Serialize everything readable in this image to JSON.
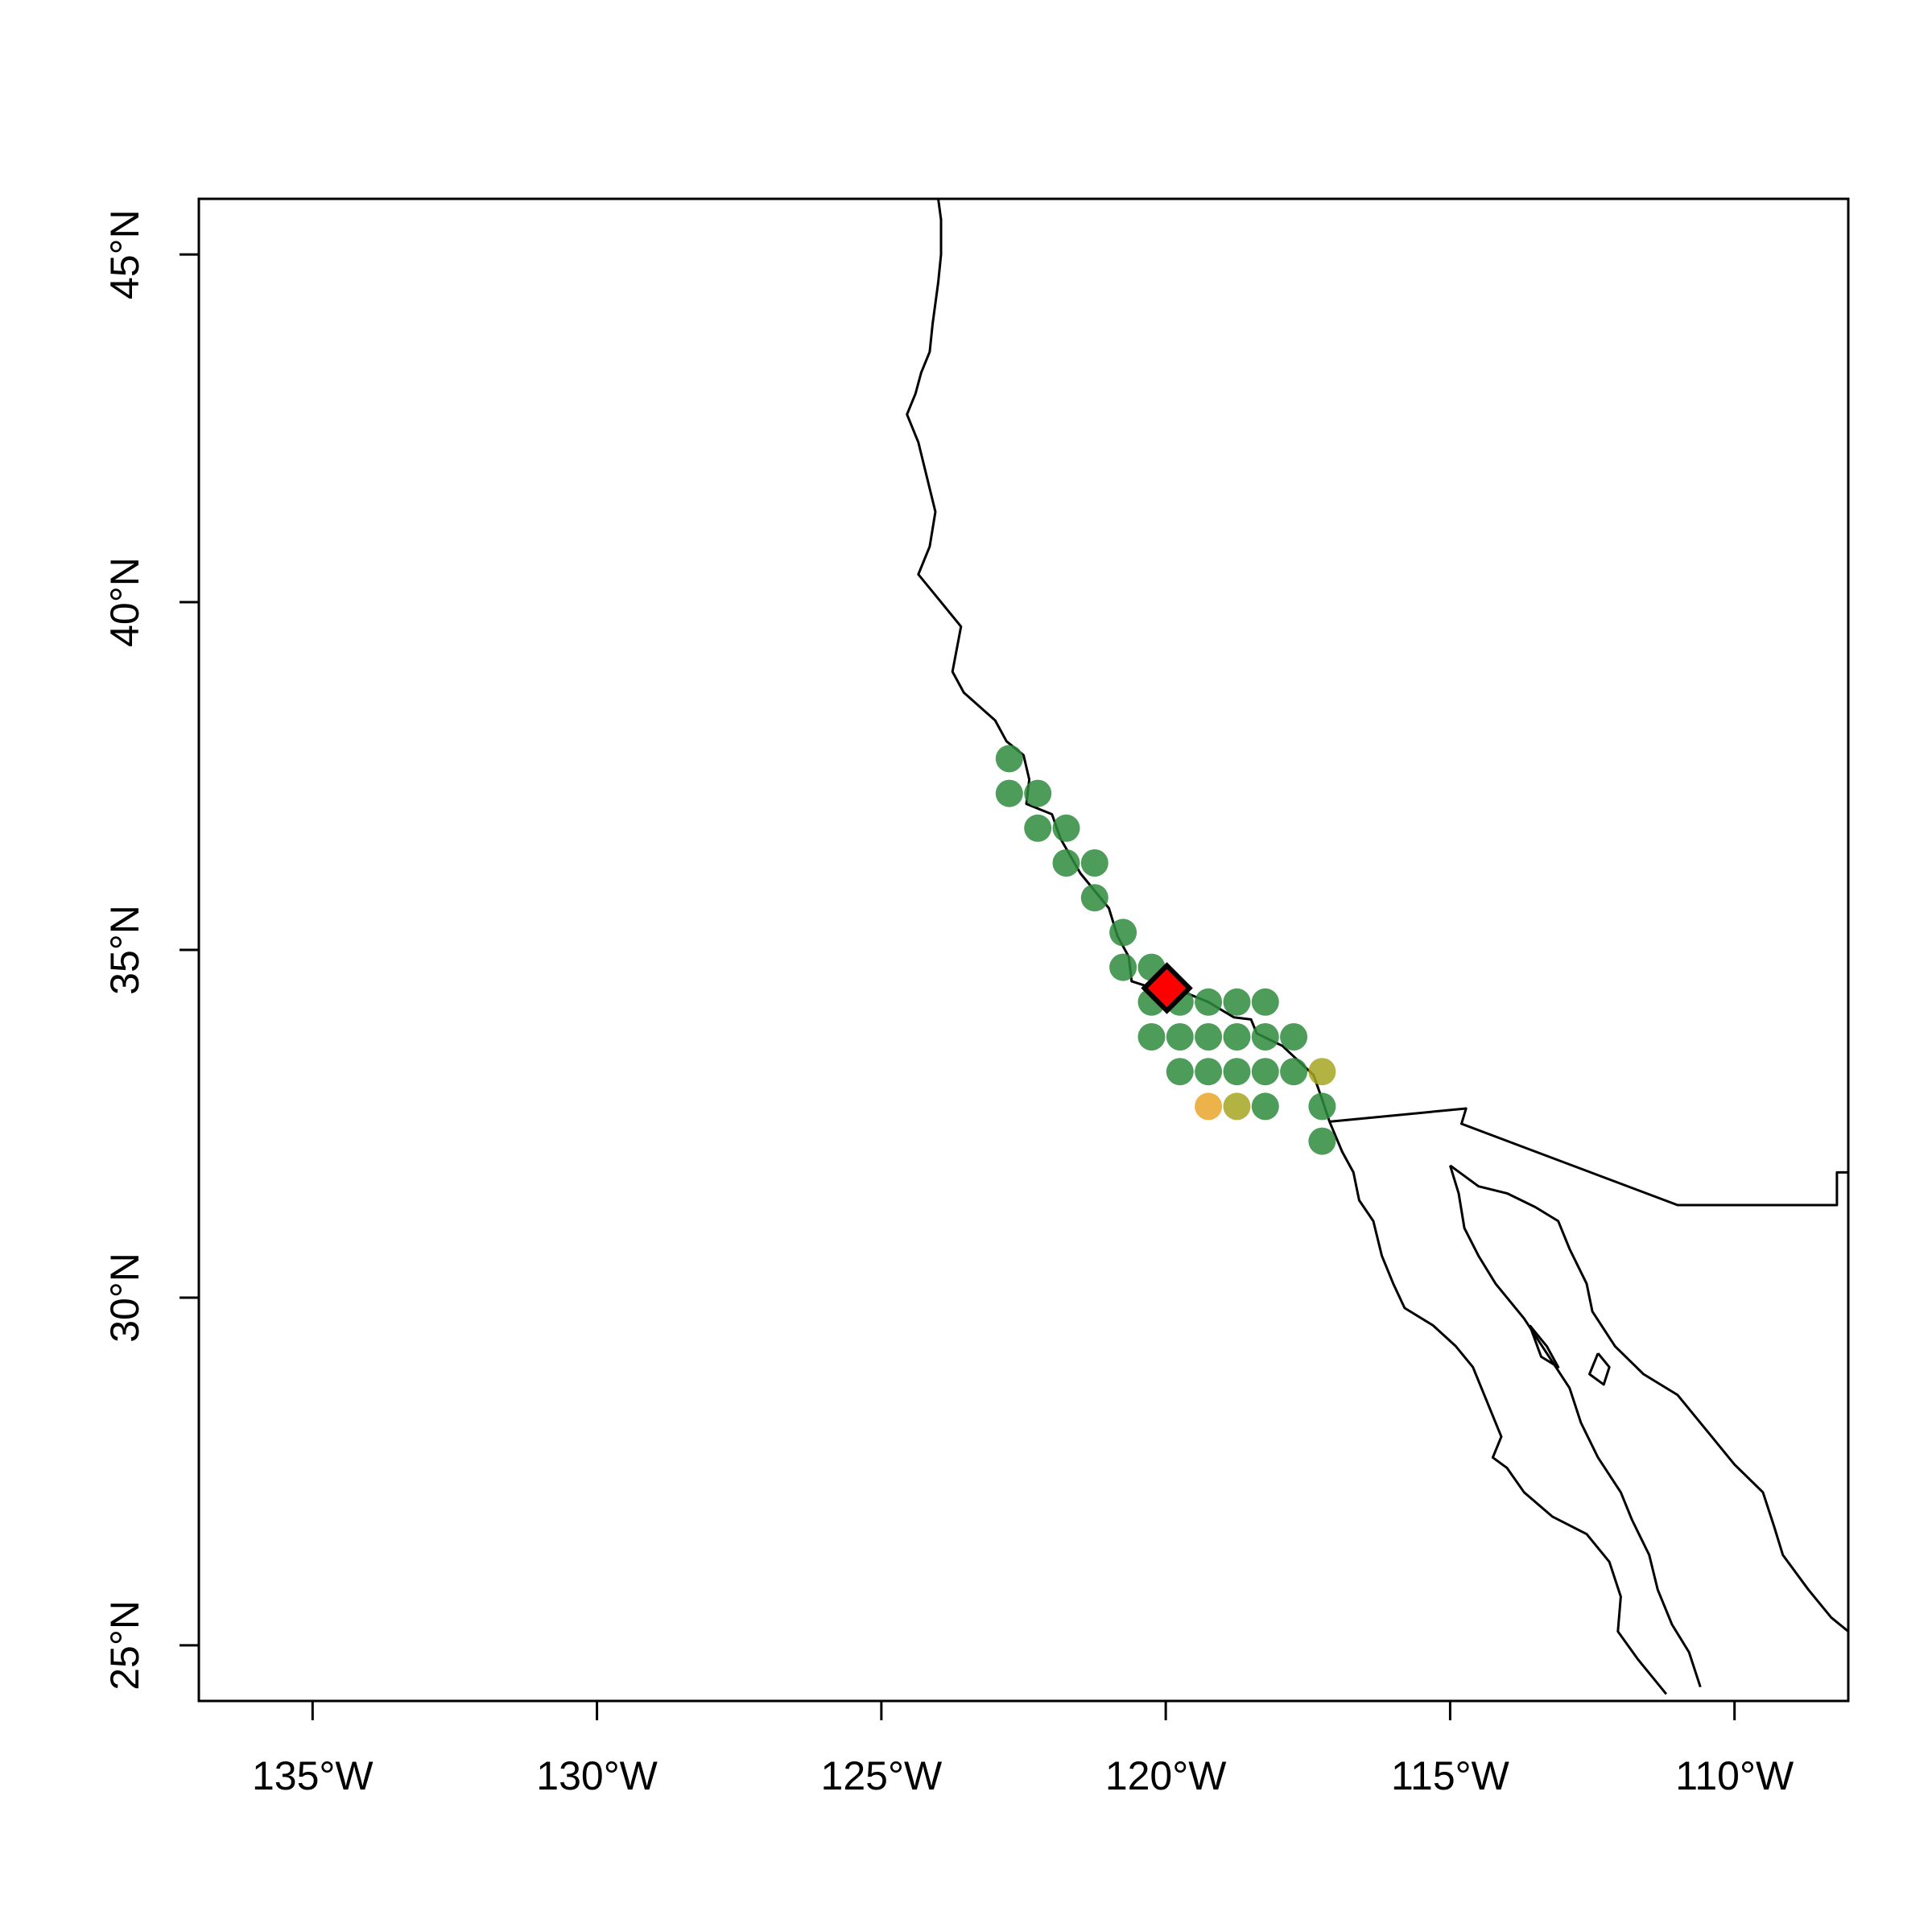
{
  "chart_data": {
    "type": "scatter",
    "title": "",
    "xlabel": "",
    "ylabel": "",
    "xlim": [
      -137,
      -108
    ],
    "ylim": [
      24.2,
      45.8
    ],
    "x_ticks": [
      {
        "value": -135,
        "label": "135°W"
      },
      {
        "value": -130,
        "label": "130°W"
      },
      {
        "value": -125,
        "label": "125°W"
      },
      {
        "value": -120,
        "label": "120°W"
      },
      {
        "value": -115,
        "label": "115°W"
      },
      {
        "value": -110,
        "label": "110°W"
      }
    ],
    "y_ticks": [
      {
        "value": 25,
        "label": "25°N"
      },
      {
        "value": 30,
        "label": "30°N"
      },
      {
        "value": 35,
        "label": "35°N"
      },
      {
        "value": 40,
        "label": "40°N"
      },
      {
        "value": 45,
        "label": "45°N"
      }
    ],
    "colors": {
      "green": "#2e8b3c",
      "olive": "#a6a623",
      "orange": "#e8a62a",
      "marker_fill": "#ff0000",
      "marker_stroke": "#000000"
    },
    "points": [
      {
        "lon": -122.75,
        "lat": 37.75,
        "color": "green"
      },
      {
        "lon": -122.75,
        "lat": 37.25,
        "color": "green"
      },
      {
        "lon": -122.25,
        "lat": 37.25,
        "color": "green"
      },
      {
        "lon": -122.25,
        "lat": 36.75,
        "color": "green"
      },
      {
        "lon": -121.75,
        "lat": 36.75,
        "color": "green"
      },
      {
        "lon": -121.75,
        "lat": 36.25,
        "color": "green"
      },
      {
        "lon": -121.25,
        "lat": 36.25,
        "color": "green"
      },
      {
        "lon": -121.25,
        "lat": 35.75,
        "color": "green"
      },
      {
        "lon": -120.75,
        "lat": 35.25,
        "color": "green"
      },
      {
        "lon": -120.75,
        "lat": 34.75,
        "color": "green"
      },
      {
        "lon": -120.25,
        "lat": 34.75,
        "color": "green"
      },
      {
        "lon": -120.25,
        "lat": 34.25,
        "color": "green"
      },
      {
        "lon": -119.75,
        "lat": 34.25,
        "color": "green"
      },
      {
        "lon": -119.25,
        "lat": 34.25,
        "color": "green"
      },
      {
        "lon": -118.75,
        "lat": 34.25,
        "color": "green"
      },
      {
        "lon": -118.25,
        "lat": 34.25,
        "color": "green"
      },
      {
        "lon": -120.25,
        "lat": 33.75,
        "color": "green"
      },
      {
        "lon": -119.75,
        "lat": 33.75,
        "color": "green"
      },
      {
        "lon": -119.25,
        "lat": 33.75,
        "color": "green"
      },
      {
        "lon": -118.75,
        "lat": 33.75,
        "color": "green"
      },
      {
        "lon": -118.25,
        "lat": 33.75,
        "color": "green"
      },
      {
        "lon": -117.75,
        "lat": 33.75,
        "color": "green"
      },
      {
        "lon": -119.75,
        "lat": 33.25,
        "color": "green"
      },
      {
        "lon": -119.25,
        "lat": 33.25,
        "color": "green"
      },
      {
        "lon": -118.75,
        "lat": 33.25,
        "color": "green"
      },
      {
        "lon": -118.25,
        "lat": 33.25,
        "color": "green"
      },
      {
        "lon": -117.75,
        "lat": 33.25,
        "color": "green"
      },
      {
        "lon": -117.25,
        "lat": 33.25,
        "color": "olive"
      },
      {
        "lon": -119.25,
        "lat": 32.75,
        "color": "orange"
      },
      {
        "lon": -118.75,
        "lat": 32.75,
        "color": "olive"
      },
      {
        "lon": -118.25,
        "lat": 32.75,
        "color": "green"
      },
      {
        "lon": -117.25,
        "lat": 32.75,
        "color": "green"
      },
      {
        "lon": -117.25,
        "lat": 32.25,
        "color": "green"
      }
    ],
    "highlight": {
      "lon": -119.98,
      "lat": 34.45,
      "shape": "diamond"
    },
    "coastlines": {
      "us_coast": [
        [
          -124.0,
          45.8
        ],
        [
          -123.95,
          45.5
        ],
        [
          -123.95,
          45.0
        ],
        [
          -124.0,
          44.6
        ],
        [
          -124.1,
          44.0
        ],
        [
          -124.15,
          43.6
        ],
        [
          -124.3,
          43.3
        ],
        [
          -124.4,
          43.0
        ],
        [
          -124.55,
          42.7
        ],
        [
          -124.35,
          42.3
        ],
        [
          -124.2,
          41.8
        ],
        [
          -124.05,
          41.3
        ],
        [
          -124.15,
          40.8
        ],
        [
          -124.35,
          40.4
        ],
        [
          -124.0,
          40.05
        ],
        [
          -123.6,
          39.65
        ],
        [
          -123.75,
          39.0
        ],
        [
          -123.55,
          38.7
        ],
        [
          -123.0,
          38.3
        ],
        [
          -122.8,
          38.0
        ],
        [
          -122.5,
          37.8
        ],
        [
          -122.4,
          37.45
        ],
        [
          -122.45,
          37.1
        ],
        [
          -122.0,
          36.95
        ],
        [
          -121.85,
          36.6
        ],
        [
          -121.5,
          36.1
        ],
        [
          -121.0,
          35.6
        ],
        [
          -120.85,
          35.2
        ],
        [
          -120.65,
          34.9
        ],
        [
          -120.6,
          34.55
        ],
        [
          -120.3,
          34.47
        ],
        [
          -119.7,
          34.4
        ],
        [
          -119.25,
          34.25
        ],
        [
          -118.8,
          34.03
        ],
        [
          -118.5,
          34.0
        ],
        [
          -118.4,
          33.8
        ],
        [
          -118.2,
          33.72
        ],
        [
          -117.95,
          33.62
        ],
        [
          -117.4,
          33.2
        ],
        [
          -117.25,
          32.85
        ],
        [
          -117.12,
          32.53
        ]
      ],
      "baja_pacific": [
        [
          -117.12,
          32.53
        ],
        [
          -116.9,
          32.1
        ],
        [
          -116.7,
          31.8
        ],
        [
          -116.6,
          31.4
        ],
        [
          -116.35,
          31.1
        ],
        [
          -116.2,
          30.6
        ],
        [
          -116.0,
          30.2
        ],
        [
          -115.8,
          29.85
        ],
        [
          -115.3,
          29.6
        ],
        [
          -114.9,
          29.3
        ],
        [
          -114.6,
          29.0
        ],
        [
          -114.3,
          28.4
        ],
        [
          -114.1,
          28.0
        ],
        [
          -114.25,
          27.7
        ],
        [
          -114.0,
          27.55
        ],
        [
          -113.7,
          27.2
        ],
        [
          -113.2,
          26.85
        ],
        [
          -112.6,
          26.6
        ],
        [
          -112.2,
          26.2
        ],
        [
          -112.0,
          25.7
        ],
        [
          -112.05,
          25.2
        ],
        [
          -111.7,
          24.8
        ],
        [
          -111.2,
          24.3
        ]
      ],
      "gulf_west": [
        [
          -115.0,
          31.9
        ],
        [
          -114.85,
          31.5
        ],
        [
          -114.75,
          31.0
        ],
        [
          -114.5,
          30.6
        ],
        [
          -114.2,
          30.2
        ],
        [
          -113.7,
          29.7
        ],
        [
          -113.3,
          29.2
        ],
        [
          -112.9,
          28.7
        ],
        [
          -112.7,
          28.2
        ],
        [
          -112.4,
          27.7
        ],
        [
          -112.0,
          27.2
        ],
        [
          -111.8,
          26.8
        ],
        [
          -111.5,
          26.3
        ],
        [
          -111.35,
          25.8
        ],
        [
          -111.1,
          25.3
        ],
        [
          -110.8,
          24.9
        ],
        [
          -110.6,
          24.4
        ]
      ],
      "gulf_east": [
        [
          -115.0,
          31.9
        ],
        [
          -114.5,
          31.6
        ],
        [
          -114.0,
          31.5
        ],
        [
          -113.5,
          31.3
        ],
        [
          -113.1,
          31.1
        ],
        [
          -112.9,
          30.7
        ],
        [
          -112.6,
          30.2
        ],
        [
          -112.5,
          29.8
        ],
        [
          -112.1,
          29.3
        ],
        [
          -111.6,
          28.9
        ],
        [
          -111.0,
          28.6
        ],
        [
          -110.4,
          28.0
        ],
        [
          -110.0,
          27.6
        ],
        [
          -109.5,
          27.2
        ],
        [
          -109.3,
          26.7
        ],
        [
          -109.15,
          26.3
        ],
        [
          -108.7,
          25.8
        ],
        [
          -108.3,
          25.4
        ],
        [
          -108.0,
          25.2
        ]
      ],
      "border": [
        [
          -117.12,
          32.53
        ],
        [
          -114.72,
          32.72
        ],
        [
          -114.8,
          32.5
        ],
        [
          -111.0,
          31.33
        ],
        [
          -108.2,
          31.33
        ],
        [
          -108.2,
          31.8
        ],
        [
          -108.0,
          31.8
        ]
      ],
      "angel_island": [
        [
          -113.6,
          29.6
        ],
        [
          -113.3,
          29.3
        ],
        [
          -113.1,
          29.0
        ],
        [
          -113.4,
          29.15
        ],
        [
          -113.6,
          29.6
        ]
      ],
      "tiburon": [
        [
          -112.4,
          29.2
        ],
        [
          -112.2,
          29.0
        ],
        [
          -112.3,
          28.75
        ],
        [
          -112.55,
          28.9
        ],
        [
          -112.4,
          29.2
        ]
      ]
    }
  }
}
